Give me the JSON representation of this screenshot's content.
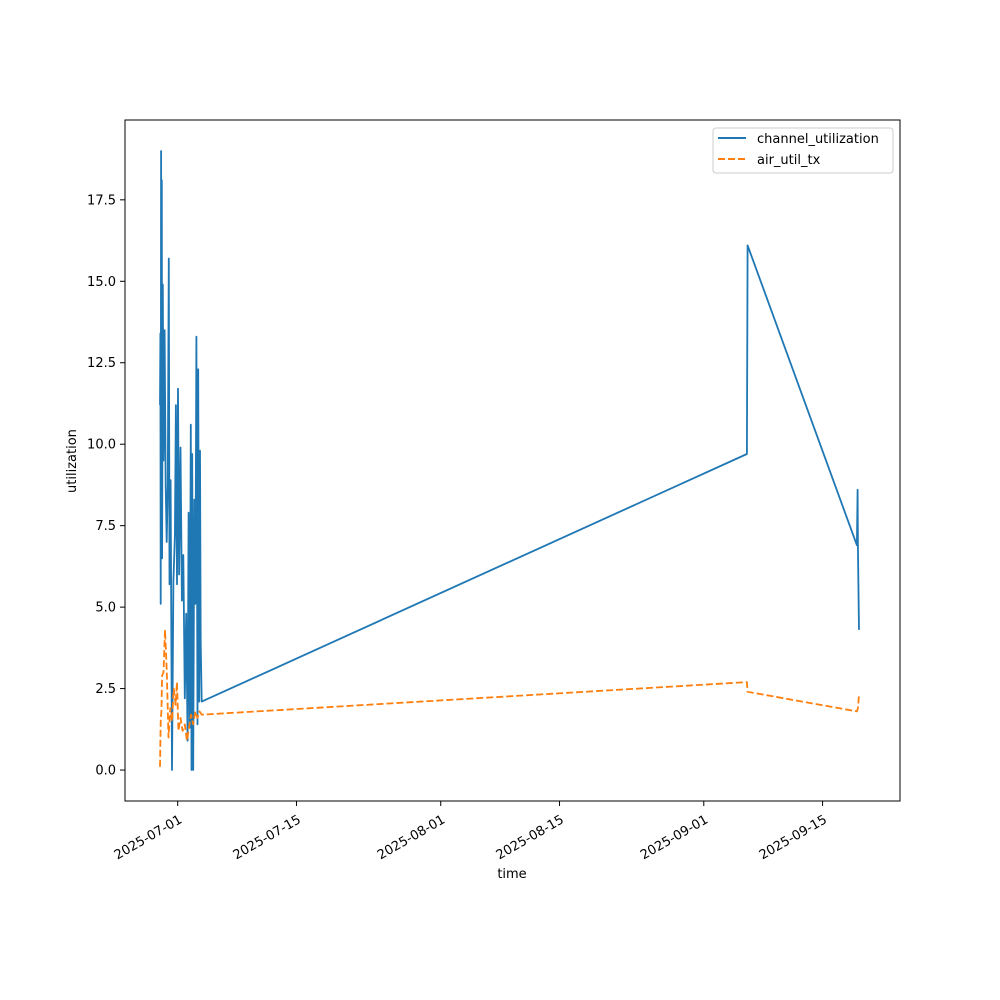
{
  "chart_data": {
    "type": "line",
    "title": "",
    "xlabel": "time",
    "ylabel": "utilization",
    "x_axis_type": "date",
    "xlim": [
      "2025-06-24T19:00",
      "2025-09-24T03:00"
    ],
    "ylim": [
      -0.95,
      19.95
    ],
    "x_ticks": [
      "2025-07-01",
      "2025-07-15",
      "2025-08-01",
      "2025-08-15",
      "2025-09-01",
      "2025-09-15"
    ],
    "y_ticks": [
      0.0,
      2.5,
      5.0,
      7.5,
      10.0,
      12.5,
      15.0,
      17.5
    ],
    "y_tick_labels": [
      "0.0",
      "2.5",
      "5.0",
      "7.5",
      "10.0",
      "12.5",
      "15.0",
      "17.5"
    ],
    "grid": false,
    "legend_position": "top-right",
    "series": [
      {
        "name": "channel_utilization",
        "color": "#1f77b4",
        "style": "solid",
        "points": [
          [
            "2025-06-28T22:00",
            11.2
          ],
          [
            "2025-06-28T23:00",
            13.4
          ],
          [
            "2025-06-29T00:00",
            5.1
          ],
          [
            "2025-06-29T01:00",
            19.0
          ],
          [
            "2025-06-29T02:00",
            9.0
          ],
          [
            "2025-06-29T03:00",
            18.1
          ],
          [
            "2025-06-29T04:00",
            6.5
          ],
          [
            "2025-06-29T06:00",
            14.9
          ],
          [
            "2025-06-29T08:00",
            9.5
          ],
          [
            "2025-06-29T11:00",
            13.5
          ],
          [
            "2025-06-29T14:00",
            8.7
          ],
          [
            "2025-06-29T17:00",
            7.0
          ],
          [
            "2025-06-29T20:00",
            8.8
          ],
          [
            "2025-06-29T23:00",
            15.7
          ],
          [
            "2025-06-30T01:00",
            5.7
          ],
          [
            "2025-06-30T04:00",
            8.9
          ],
          [
            "2025-06-30T08:00",
            0.0
          ],
          [
            "2025-06-30T12:00",
            5.8
          ],
          [
            "2025-06-30T16:00",
            7.2
          ],
          [
            "2025-06-30T19:00",
            11.2
          ],
          [
            "2025-06-30T22:00",
            5.7
          ],
          [
            "2025-07-01T01:00",
            11.7
          ],
          [
            "2025-07-01T04:00",
            6.0
          ],
          [
            "2025-07-01T08:00",
            9.9
          ],
          [
            "2025-07-01T12:00",
            5.2
          ],
          [
            "2025-07-01T16:00",
            6.6
          ],
          [
            "2025-07-01T20:00",
            2.2
          ],
          [
            "2025-07-02T00:00",
            4.8
          ],
          [
            "2025-07-02T04:00",
            0.9
          ],
          [
            "2025-07-02T07:00",
            7.9
          ],
          [
            "2025-07-02T10:00",
            1.3
          ],
          [
            "2025-07-02T13:00",
            10.6
          ],
          [
            "2025-07-02T15:00",
            0.0
          ],
          [
            "2025-07-02T17:00",
            9.7
          ],
          [
            "2025-07-02T20:00",
            0.0
          ],
          [
            "2025-07-02T23:00",
            8.3
          ],
          [
            "2025-07-03T02:00",
            5.1
          ],
          [
            "2025-07-03T05:00",
            13.3
          ],
          [
            "2025-07-03T08:00",
            1.4
          ],
          [
            "2025-07-03T10:00",
            12.3
          ],
          [
            "2025-07-03T13:00",
            2.1
          ],
          [
            "2025-07-03T15:00",
            9.8
          ],
          [
            "2025-07-03T17:00",
            3.9
          ],
          [
            "2025-07-03T20:00",
            2.1
          ],
          [
            "2025-09-06T02:00",
            9.7
          ],
          [
            "2025-09-06T04:00",
            16.1
          ],
          [
            "2025-09-19T01:00",
            6.9
          ],
          [
            "2025-09-19T03:00",
            8.6
          ],
          [
            "2025-09-19T04:00",
            6.9
          ],
          [
            "2025-09-19T07:00",
            4.3
          ]
        ]
      },
      {
        "name": "air_util_tx",
        "color": "#ff7f0e",
        "style": "dashed",
        "points": [
          [
            "2025-06-28T22:00",
            0.1
          ],
          [
            "2025-06-29T00:00",
            1.5
          ],
          [
            "2025-06-29T02:00",
            1.8
          ],
          [
            "2025-06-29T04:00",
            2.9
          ],
          [
            "2025-06-29T08:00",
            3.0
          ],
          [
            "2025-06-29T12:00",
            4.3
          ],
          [
            "2025-06-29T17:00",
            3.1
          ],
          [
            "2025-06-29T22:00",
            1.0
          ],
          [
            "2025-06-30T03:00",
            1.9
          ],
          [
            "2025-06-30T08:00",
            1.5
          ],
          [
            "2025-06-30T13:00",
            2.5
          ],
          [
            "2025-06-30T18:00",
            2.0
          ],
          [
            "2025-06-30T22:00",
            2.7
          ],
          [
            "2025-07-01T02:00",
            1.2
          ],
          [
            "2025-07-01T08:00",
            1.6
          ],
          [
            "2025-07-01T14:00",
            1.2
          ],
          [
            "2025-07-01T20:00",
            1.4
          ],
          [
            "2025-07-02T02:00",
            0.9
          ],
          [
            "2025-07-02T08:00",
            1.3
          ],
          [
            "2025-07-02T14:00",
            1.7
          ],
          [
            "2025-07-02T20:00",
            1.4
          ],
          [
            "2025-07-03T02:00",
            1.8
          ],
          [
            "2025-07-03T08:00",
            1.6
          ],
          [
            "2025-07-03T14:00",
            1.8
          ],
          [
            "2025-07-03T20:00",
            1.7
          ],
          [
            "2025-09-06T02:00",
            2.7
          ],
          [
            "2025-09-06T04:00",
            2.4
          ],
          [
            "2025-09-19T01:00",
            1.8
          ],
          [
            "2025-09-19T04:00",
            1.9
          ],
          [
            "2025-09-19T07:00",
            2.3
          ]
        ]
      }
    ]
  }
}
